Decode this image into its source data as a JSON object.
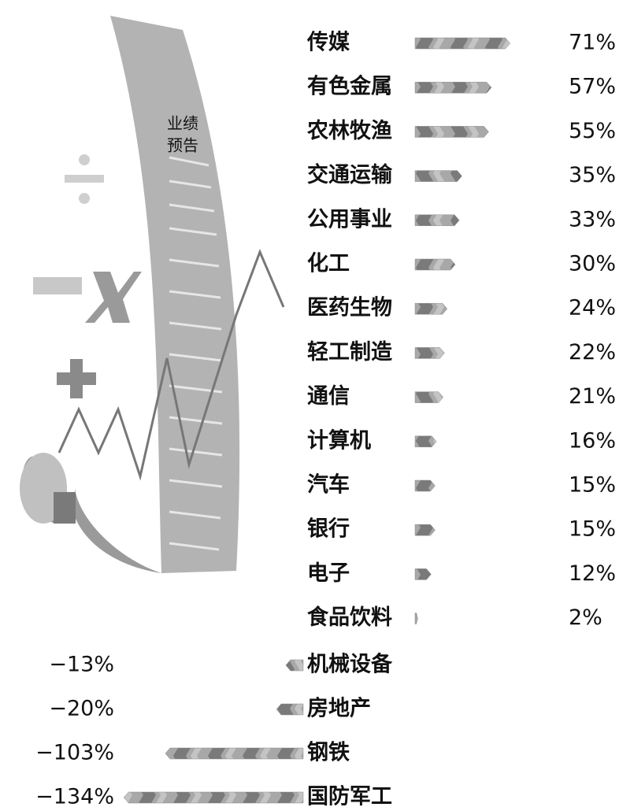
{
  "chart_data": {
    "type": "bar",
    "annotations": [
      "业绩",
      "预告"
    ],
    "categories": [
      "传媒",
      "有色金属",
      "农林牧渔",
      "交通运输",
      "公用事业",
      "化工",
      "医药生物",
      "轻工制造",
      "通信",
      "计算机",
      "汽车",
      "银行",
      "电子",
      "食品饮料",
      "机械设备",
      "房地产",
      "钢铁",
      "国防军工"
    ],
    "values": [
      71,
      57,
      55,
      35,
      33,
      30,
      24,
      22,
      21,
      16,
      15,
      15,
      12,
      2,
      -13,
      -20,
      -103,
      -134
    ],
    "value_labels": [
      "71%",
      "57%",
      "55%",
      "35%",
      "33%",
      "30%",
      "24%",
      "22%",
      "21%",
      "16%",
      "15%",
      "15%",
      "12%",
      "2%",
      "−13%",
      "−20%",
      "−103%",
      "−134%"
    ],
    "color": "#8c8c8c"
  }
}
